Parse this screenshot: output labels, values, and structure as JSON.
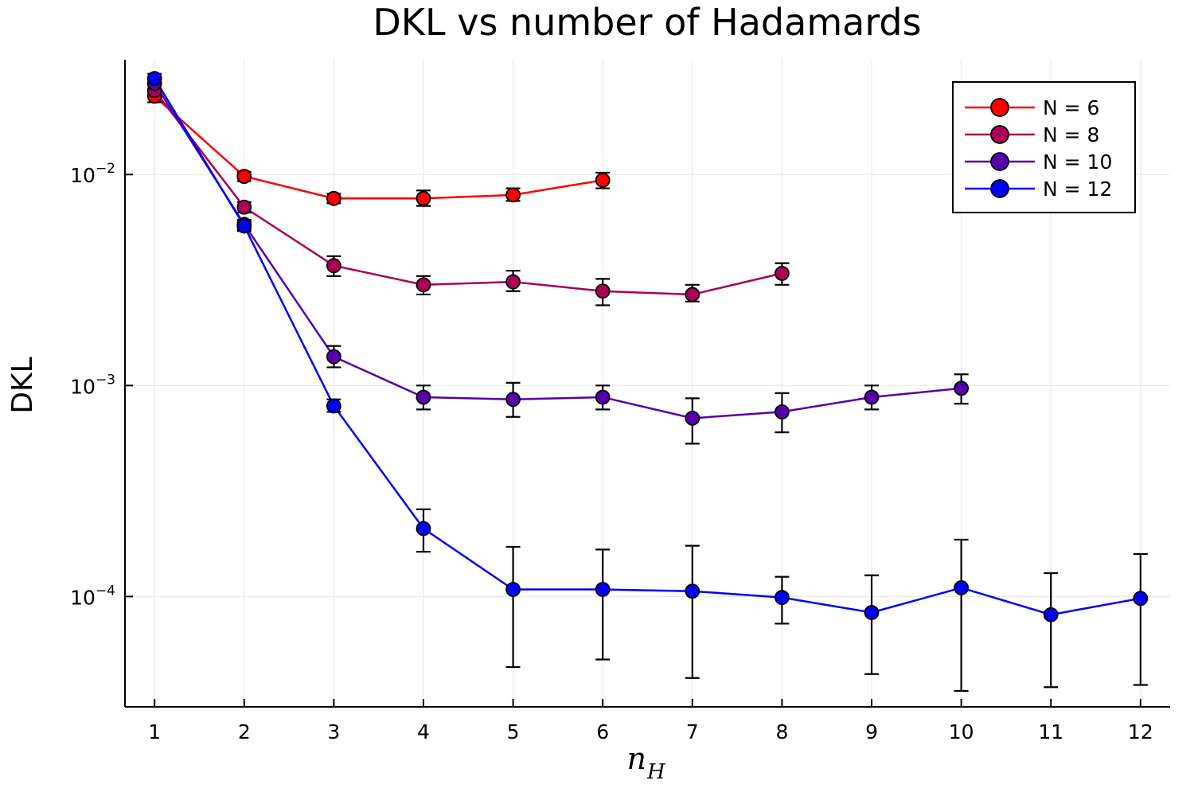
{
  "chart_data": {
    "type": "line",
    "title": "DKL vs number of Hadamards",
    "xlabel_base": "n",
    "xlabel_sub": "H",
    "ylabel": "DKL",
    "yscale": "log",
    "xlim": [
      0.67,
      12.33
    ],
    "ylim": [
      3e-05,
      0.035
    ],
    "xticks": [
      "1",
      "2",
      "3",
      "4",
      "5",
      "6",
      "7",
      "8",
      "9",
      "10",
      "11",
      "12"
    ],
    "yticks": [
      {
        "base": "10",
        "exp": "−2",
        "value": 0.01
      },
      {
        "base": "10",
        "exp": "−3",
        "value": 0.001
      },
      {
        "base": "10",
        "exp": "−4",
        "value": 0.0001
      }
    ],
    "grid": true,
    "legend_position": "top-right",
    "series": [
      {
        "name": "N = 6",
        "color": "#ff0000",
        "x": [
          1,
          2,
          3,
          4,
          5,
          6
        ],
        "y": [
          0.0235,
          0.0098,
          0.0077,
          0.0077,
          0.008,
          0.0094
        ],
        "yerr_low": [
          0.022,
          0.0093,
          0.0073,
          0.0071,
          0.0075,
          0.0086
        ],
        "yerr_high": [
          0.025,
          0.0103,
          0.0081,
          0.0084,
          0.0086,
          0.0102
        ]
      },
      {
        "name": "N = 8",
        "color": "#aa0055",
        "x": [
          1,
          2,
          3,
          4,
          5,
          6,
          7,
          8
        ],
        "y": [
          0.025,
          0.007,
          0.0037,
          0.003,
          0.0031,
          0.0028,
          0.0027,
          0.0034
        ],
        "yerr_low": [
          0.0235,
          0.0066,
          0.0033,
          0.0027,
          0.0028,
          0.0024,
          0.0025,
          0.003
        ],
        "yerr_high": [
          0.0265,
          0.0074,
          0.0041,
          0.0033,
          0.0035,
          0.0032,
          0.003,
          0.0038
        ]
      },
      {
        "name": "N = 10",
        "color": "#5500aa",
        "x": [
          1,
          2,
          3,
          4,
          5,
          6,
          7,
          8,
          9,
          10
        ],
        "y": [
          0.027,
          0.0058,
          0.00137,
          0.00088,
          0.00086,
          0.00088,
          0.0007,
          0.00075,
          0.00088,
          0.00097
        ],
        "yerr_low": [
          0.0255,
          0.0055,
          0.00122,
          0.00077,
          0.00071,
          0.00077,
          0.00053,
          0.0006,
          0.00077,
          0.00082
        ],
        "yerr_high": [
          0.0285,
          0.0061,
          0.00154,
          0.001,
          0.00103,
          0.001,
          0.00087,
          0.00092,
          0.001,
          0.00113
        ]
      },
      {
        "name": "N = 12",
        "color": "#0000ff",
        "x": [
          1,
          2,
          3,
          4,
          5,
          6,
          7,
          8,
          9,
          10,
          11,
          12
        ],
        "y": [
          0.0285,
          0.0057,
          0.0008,
          0.00021,
          0.000108,
          0.000108,
          0.000106,
          9.9e-05,
          8.4e-05,
          0.00011,
          8.2e-05,
          9.8e-05
        ],
        "yerr_low": [
          0.027,
          0.0054,
          0.00075,
          0.000163,
          4.63e-05,
          5.03e-05,
          4.11e-05,
          7.44e-05,
          4.29e-05,
          3.57e-05,
          3.72e-05,
          3.81e-05
        ],
        "yerr_high": [
          0.03,
          0.006,
          0.00086,
          0.000259,
          0.000172,
          0.000167,
          0.000174,
          0.000124,
          0.000126,
          0.000186,
          0.000129,
          0.000159
        ]
      }
    ]
  }
}
